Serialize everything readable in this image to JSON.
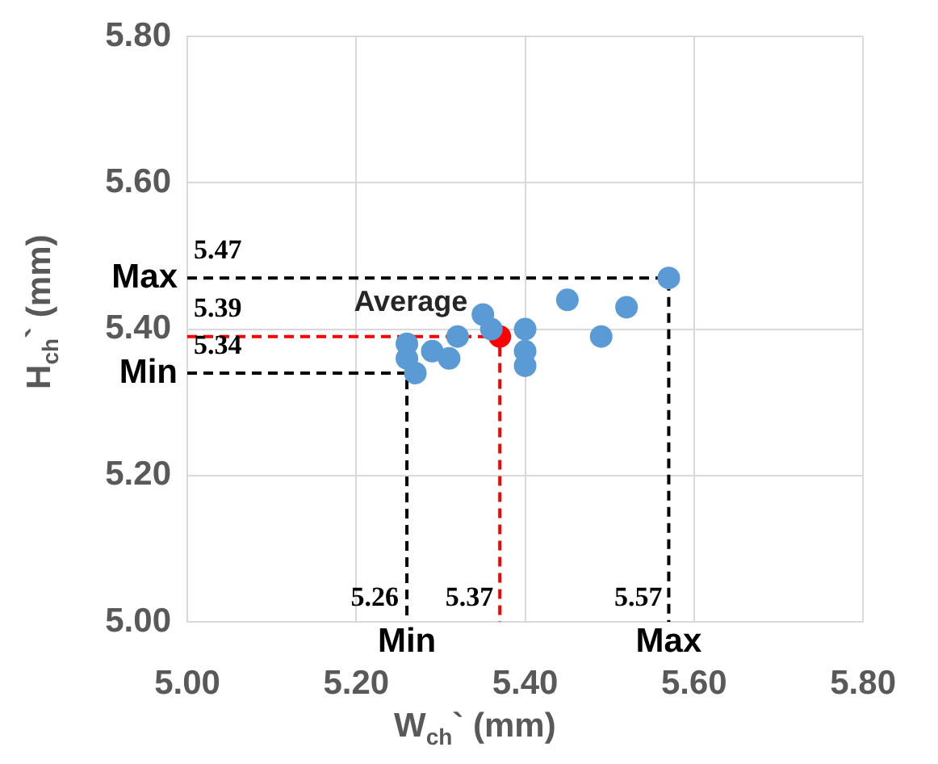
{
  "chart_data": {
    "type": "scatter",
    "xlabel": "W$_{ch}$` (mm)",
    "ylabel": "H$_{ch}$` (mm)",
    "xlim": [
      5.0,
      5.8
    ],
    "ylim": [
      5.0,
      5.8
    ],
    "xticks": [
      {
        "value": 5.0,
        "label": "5.00"
      },
      {
        "value": 5.2,
        "label": "5.20"
      },
      {
        "value": 5.4,
        "label": "5.40"
      },
      {
        "value": 5.6,
        "label": "5.60"
      },
      {
        "value": 5.8,
        "label": "5.80"
      }
    ],
    "yticks": [
      {
        "value": 5.0,
        "label": "5.00"
      },
      {
        "value": 5.2,
        "label": "5.20"
      },
      {
        "value": 5.4,
        "label": "5.40"
      },
      {
        "value": 5.6,
        "label": "5.60"
      },
      {
        "value": 5.8,
        "label": "5.80"
      }
    ],
    "grid": true,
    "legend": false,
    "series": [
      {
        "type": "line",
        "marker": "none",
        "color": "#000000",
        "line_style": "dashed",
        "x": [
          5.0,
          5.57,
          5.57
        ],
        "values": [
          5.47,
          5.47,
          5.0
        ]
      },
      {
        "type": "line",
        "marker": "none",
        "color": "#000000",
        "line_style": "dashed",
        "x": [
          5.0,
          5.26,
          5.26
        ],
        "values": [
          5.34,
          5.34,
          5.0
        ]
      },
      {
        "type": "line",
        "marker": "none",
        "color": "#ff0000",
        "line_style": "dashed",
        "x": [
          5.0,
          5.37,
          5.37
        ],
        "values": [
          5.39,
          5.39,
          5.0
        ]
      },
      {
        "marker": "circle",
        "color": "#5b9bd5",
        "x": [
          5.57,
          5.45,
          5.52,
          5.49,
          5.35,
          5.4,
          5.4,
          5.4,
          5.32,
          5.36,
          5.29,
          5.31,
          5.26,
          5.26,
          5.27
        ],
        "values": [
          5.47,
          5.44,
          5.43,
          5.39,
          5.42,
          5.4,
          5.37,
          5.35,
          5.39,
          5.4,
          5.37,
          5.36,
          5.38,
          5.36,
          5.34
        ]
      },
      {
        "marker": "circle",
        "color": "#ff0000",
        "x": [
          5.37
        ],
        "values": [
          5.39
        ]
      }
    ],
    "annotations": [
      {
        "text": "5.47",
        "x": 5.0,
        "y": 5.47
      },
      {
        "text": "Max",
        "x": 5.0,
        "y": 5.47
      },
      {
        "text": "5.39",
        "x": 5.0,
        "y": 5.39
      },
      {
        "text": "5.34",
        "x": 5.0,
        "y": 5.34
      },
      {
        "text": "Min",
        "x": 5.0,
        "y": 5.34
      },
      {
        "text": "5.26",
        "x": 5.26,
        "y": 5.0
      },
      {
        "text": "5.37",
        "x": 5.37,
        "y": 5.0
      },
      {
        "text": "5.57",
        "x": 5.57,
        "y": 5.0
      },
      {
        "text": "Min",
        "x": 5.26,
        "y": 5.0
      },
      {
        "text": "Max",
        "x": 5.57,
        "y": 5.0
      },
      {
        "text": "Average",
        "x": 5.37,
        "y": 5.39
      }
    ]
  }
}
